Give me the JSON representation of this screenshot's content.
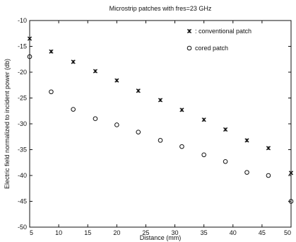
{
  "chart_data": {
    "type": "scatter",
    "title": "Microstrip patches with fres=23 GHz",
    "xlabel": "Distance (mm)",
    "ylabel": "Electric field normalized to incident power (db)",
    "xlim": [
      5,
      50
    ],
    "ylim": [
      -50,
      -10
    ],
    "xticks": [
      5,
      10,
      15,
      20,
      25,
      30,
      35,
      40,
      45,
      50
    ],
    "yticks": [
      -10,
      -15,
      -20,
      -25,
      -30,
      -35,
      -40,
      -45,
      -50
    ],
    "xtick_labels": [
      "5",
      "10",
      "15",
      "20",
      "25",
      "30",
      "35",
      "40",
      "45",
      "50"
    ],
    "ytick_labels": [
      "-10",
      "-15",
      "-20",
      "-25",
      "-30",
      "-35",
      "-40",
      "-45",
      "-50"
    ],
    "grid": false,
    "legend_position": "top-right",
    "series": [
      {
        "name": "conventional patch",
        "legend_label": ": conventional patch",
        "marker": "x",
        "x": [
          5,
          8.7,
          12.5,
          16.3,
          20.0,
          23.7,
          27.5,
          31.2,
          35.0,
          38.7,
          42.4,
          46.1,
          50
        ],
        "y": [
          -13.5,
          -16.0,
          -18.0,
          -19.8,
          -21.6,
          -23.6,
          -25.4,
          -27.3,
          -29.2,
          -31.1,
          -33.2,
          -34.7,
          -39.5
        ]
      },
      {
        "name": "cored patch",
        "legend_label": "cored patch",
        "marker": "o",
        "x": [
          5,
          8.7,
          12.5,
          16.3,
          20.0,
          23.7,
          27.5,
          31.2,
          35.0,
          38.7,
          42.4,
          46.1,
          50
        ],
        "y": [
          -17.0,
          -23.8,
          -27.2,
          -29.0,
          -30.2,
          -31.6,
          -33.2,
          -34.4,
          -36.0,
          -37.3,
          -39.4,
          -40.0,
          -45.0
        ]
      }
    ]
  }
}
